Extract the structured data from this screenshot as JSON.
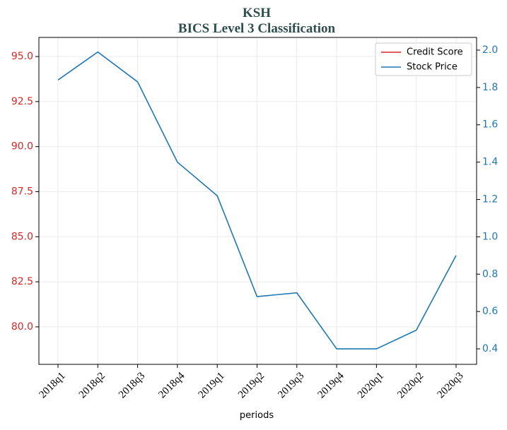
{
  "chart_data": {
    "type": "line",
    "title": "KSH",
    "subtitle": "BICS Level 3 Classification",
    "x_label": "periods",
    "categories": [
      "2018q1",
      "2018q2",
      "2018q3",
      "2018q4",
      "2019q1",
      "2019q2",
      "2019q3",
      "2019q4",
      "2020q1",
      "2020q2",
      "2020q3"
    ],
    "series": [
      {
        "name": "Credit Score",
        "color": "#d62728",
        "axis": "y",
        "values": [
          null,
          null,
          null,
          null,
          null,
          null,
          null,
          null,
          null,
          null,
          null
        ]
      },
      {
        "name": "Stock Price",
        "color": "#1f77b4",
        "axis": "y2",
        "values": [
          1.84,
          1.99,
          1.83,
          1.4,
          1.22,
          0.68,
          0.7,
          0.4,
          0.4,
          0.5,
          0.9
        ]
      }
    ],
    "ylim": [
      77.92,
      96.06
    ],
    "yticks": [
      {
        "value": 80,
        "label": "80.0"
      },
      82.5,
      {
        "value": 85,
        "label": "85.0"
      },
      87.5,
      {
        "value": 90,
        "label": "90.0"
      },
      92.5,
      {
        "value": 95,
        "label": "95.0"
      }
    ],
    "y2lim": [
      0.317,
      2.068
    ],
    "y2ticks": [
      0.4,
      0.6,
      0.8,
      {
        "value": 1,
        "label": "1.0"
      },
      1.2,
      1.4,
      1.6,
      1.8,
      {
        "value": 2,
        "label": "2.0"
      }
    ],
    "grid": true,
    "legend": "upper right"
  }
}
